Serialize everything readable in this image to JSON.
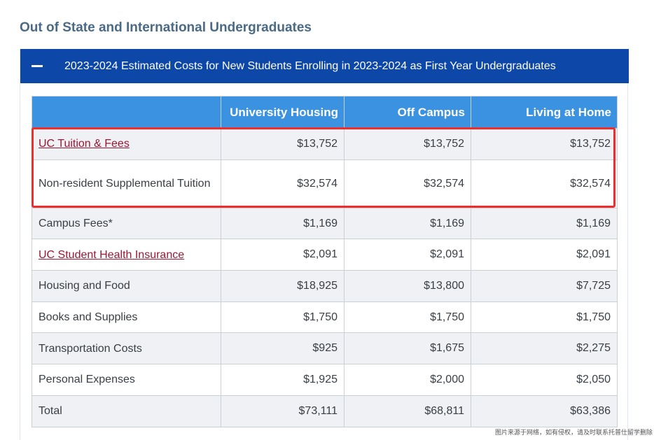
{
  "section": {
    "heading": "Out of State and International Undergraduates"
  },
  "panel": {
    "title": "2023-2024 Estimated Costs for New Students Enrolling in 2023-2024 as First Year Undergraduates",
    "collapse_icon": "minus-icon"
  },
  "table": {
    "columns": [
      "",
      "University Housing",
      "Off Campus",
      "Living at Home"
    ],
    "rows": [
      {
        "label": "UC Tuition & Fees",
        "values": [
          "$13,752",
          "$13,752",
          "$13,752"
        ]
      },
      {
        "label": "Non-resident Supplemental Tuition",
        "values": [
          "$32,574",
          "$32,574",
          "$32,574"
        ]
      },
      {
        "label": "Campus Fees*",
        "values": [
          "$1,169",
          "$1,169",
          "$1,169"
        ]
      },
      {
        "label": "UC Student Health Insurance",
        "values": [
          "$2,091",
          "$2,091",
          "$2,091"
        ]
      },
      {
        "label": "Housing and Food",
        "values": [
          "$18,925",
          "$13,800",
          "$7,725"
        ]
      },
      {
        "label": "Books and Supplies",
        "values": [
          "$1,750",
          "$1,750",
          "$1,750"
        ]
      },
      {
        "label": "Transportation Costs",
        "values": [
          "$925",
          "$1,675",
          "$2,275"
        ]
      },
      {
        "label": "Personal Expenses",
        "values": [
          "$1,925",
          "$2,000",
          "$2,050"
        ]
      },
      {
        "label": "Total",
        "values": [
          "$73,111",
          "$68,811",
          "$63,386"
        ]
      }
    ]
  },
  "colors": {
    "header_bar": "#0d47a8",
    "table_header": "#3b92e0",
    "link": "#9b1733",
    "highlight": "#ee2d2d"
  },
  "watermark": "图片来源于网络，如有侵权，请及时联系托普仕留学删除"
}
